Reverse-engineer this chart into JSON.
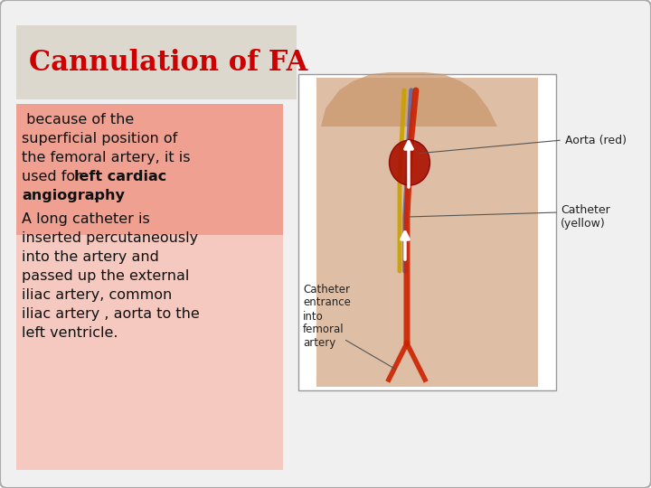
{
  "title": "Cannulation of FA",
  "title_color": "#cc0000",
  "title_fontsize": 22,
  "title_box_color": "#ddd8ce",
  "slide_bg": "#f0f0f0",
  "bg_color": "#ffffff",
  "text_box_color_top": "#f8c0b8",
  "text_box_color_bottom": "#f5e0dc",
  "text_color": "#111111",
  "text_fontsize": 11.5,
  "line1": " because of the",
  "line2": "superficial position of",
  "line3": "the femoral artery, it is",
  "line4_normal": "used for ",
  "line4_bold": "left cardiac",
  "line5_bold": "angiography",
  "line5_end": ".",
  "line6": "A long catheter is",
  "line7": "inserted percutaneously",
  "line8": "into the artery and",
  "line9": "passed up the external",
  "line10": "iliac artery, common",
  "line11": "iliac artery , aorta to the",
  "line12": "left ventricle.",
  "label_aorta": "Aorta (red)",
  "label_catheter": "Catheter\n(yellow)",
  "label_entrance": "Catheter\nentrance\ninto\nfemoral\nartery",
  "skin_color": "#c8956a",
  "aorta_color": "#cc2200",
  "vein_color": "#4455aa",
  "catheter_color": "#c8a000",
  "heart_color": "#aa1100"
}
